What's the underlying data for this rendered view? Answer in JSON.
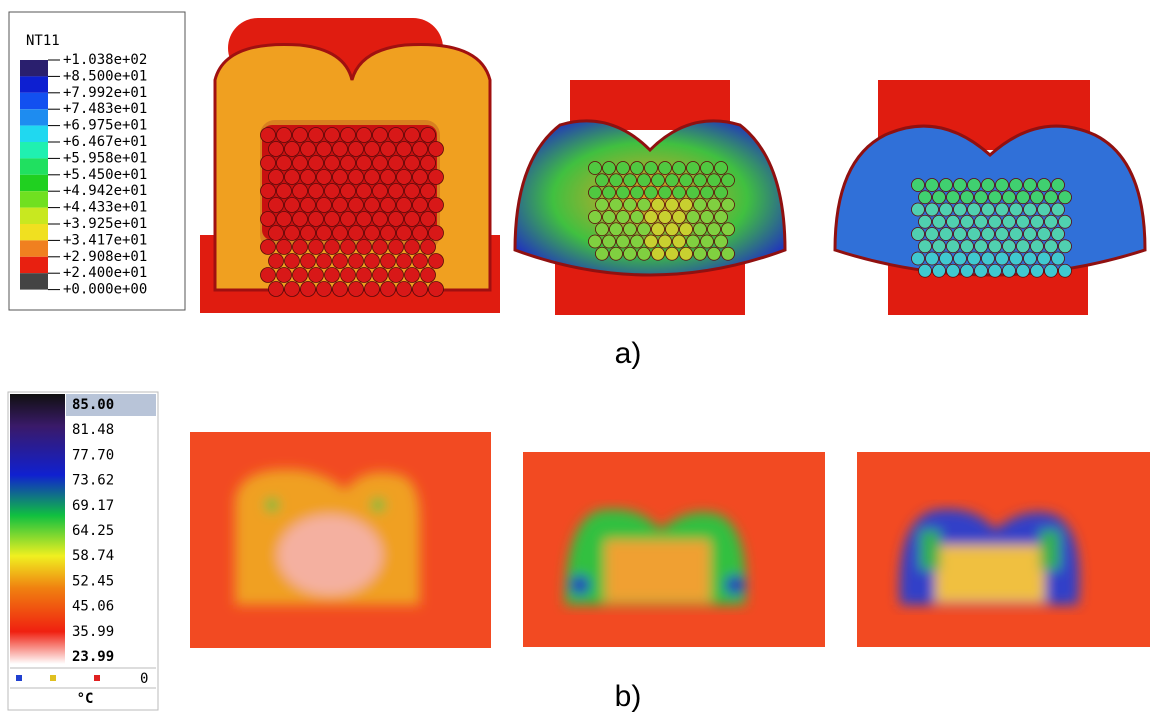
{
  "panel_a": {
    "legend_title": "NT11",
    "legend_labels": [
      "+1.038e+02",
      "+8.500e+01",
      "+7.992e+01",
      "+7.483e+01",
      "+6.975e+01",
      "+6.467e+01",
      "+5.958e+01",
      "+5.450e+01",
      "+4.942e+01",
      "+4.433e+01",
      "+3.925e+01",
      "+3.417e+01",
      "+2.908e+01",
      "+2.400e+01",
      "+0.000e+00"
    ],
    "caption": "a)"
  },
  "panel_b": {
    "legend_labels": [
      "85.00",
      "81.48",
      "77.70",
      "73.62",
      "69.17",
      "64.25",
      "58.74",
      "52.45",
      "45.06",
      "35.99",
      "23.99"
    ],
    "legend_zero": "0",
    "legend_unit": "°C",
    "caption": "b)"
  }
}
